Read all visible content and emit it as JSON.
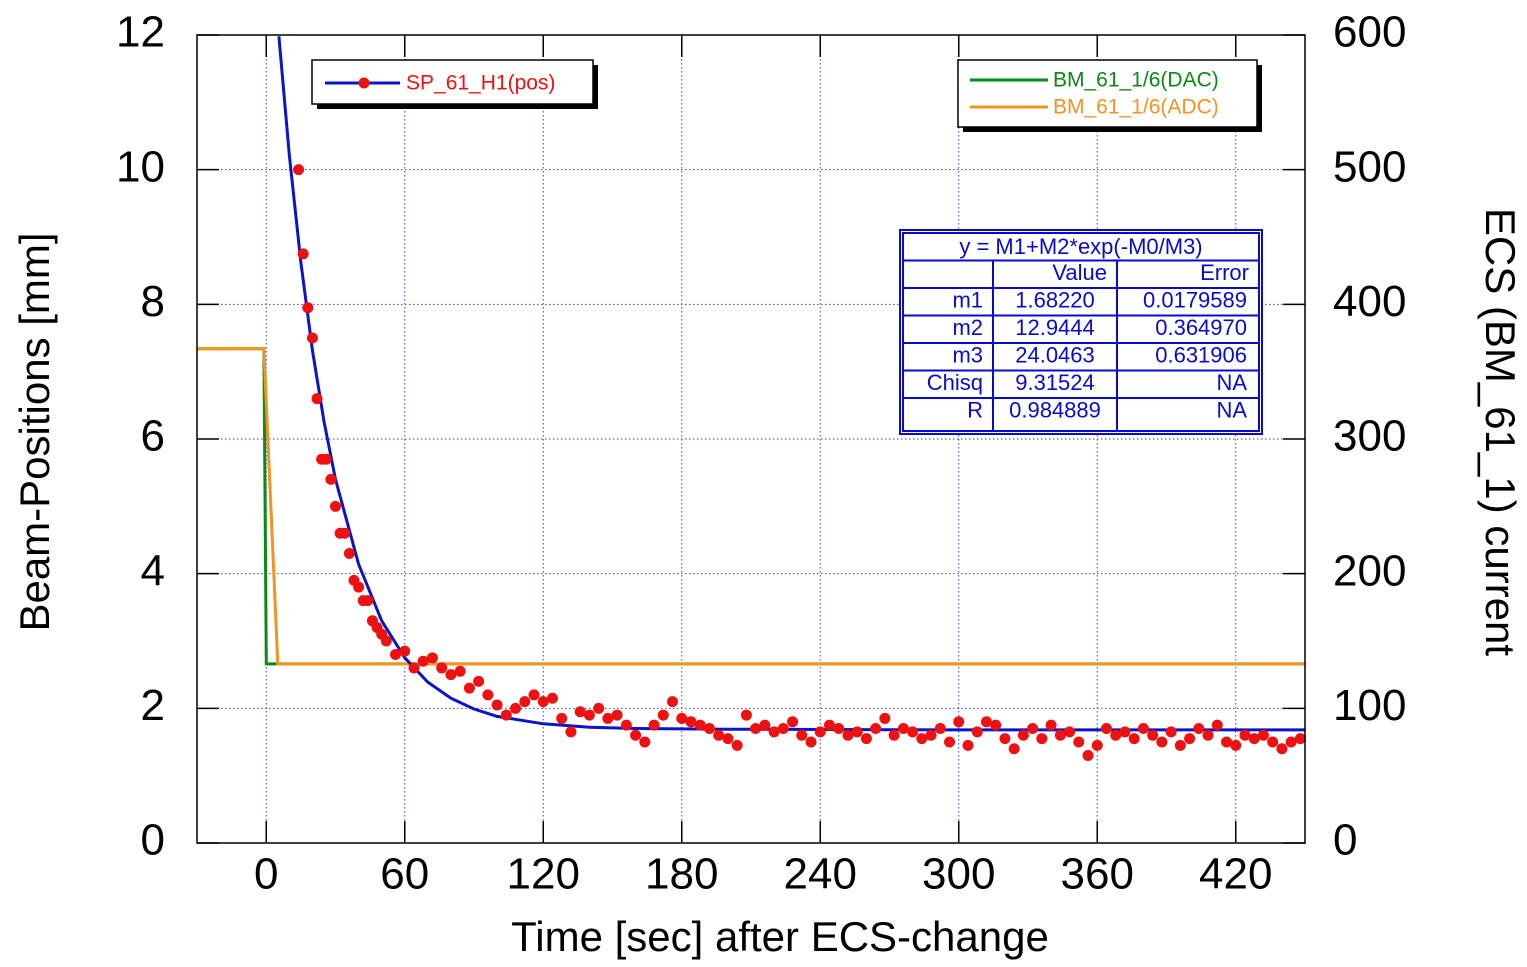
{
  "chart_data": {
    "type": "line",
    "x_label": "Time [sec] after ECS-change",
    "y_label": "Beam-Positions [mm]",
    "y2_label": "ECS (BM_61_1) current",
    "xlim": [
      -30,
      450
    ],
    "xticks": [
      0,
      60,
      120,
      180,
      240,
      300,
      360,
      420
    ],
    "ylim": [
      0,
      12
    ],
    "yticks": [
      0,
      2,
      4,
      6,
      8,
      10,
      12
    ],
    "y2lim": [
      0,
      600
    ],
    "y2ticks": [
      0,
      100,
      200,
      300,
      400,
      500,
      600
    ],
    "grid": true,
    "series": [
      {
        "name": "SP_61_H1(pos)",
        "type": "scatter",
        "color": "#ee1111",
        "x": [
          14,
          16,
          18,
          20,
          22,
          24,
          26,
          28,
          30,
          32,
          34,
          36,
          38,
          40,
          42,
          44,
          46,
          48,
          50,
          52,
          56,
          60,
          64,
          68,
          72,
          76,
          80,
          84,
          88,
          92,
          96,
          100,
          104,
          108,
          112,
          116,
          120,
          124,
          128,
          132,
          136,
          140,
          144,
          148,
          152,
          156,
          160,
          164,
          168,
          172,
          176,
          180,
          184,
          188,
          192,
          196,
          200,
          204,
          208,
          212,
          216,
          220,
          224,
          228,
          232,
          236,
          240,
          244,
          248,
          252,
          256,
          260,
          264,
          268,
          272,
          276,
          280,
          284,
          288,
          292,
          296,
          300,
          304,
          308,
          312,
          316,
          320,
          324,
          328,
          332,
          336,
          340,
          344,
          348,
          352,
          356,
          360,
          364,
          368,
          372,
          376,
          380,
          384,
          388,
          392,
          396,
          400,
          404,
          408,
          412,
          416,
          420,
          424,
          428,
          432,
          436,
          440,
          444,
          448
        ],
        "values": [
          10.0,
          8.75,
          7.95,
          7.5,
          6.6,
          5.7,
          5.7,
          5.4,
          5.0,
          4.6,
          4.6,
          4.3,
          3.9,
          3.8,
          3.6,
          3.6,
          3.3,
          3.2,
          3.1,
          3.0,
          2.8,
          2.85,
          2.6,
          2.7,
          2.75,
          2.6,
          2.5,
          2.55,
          2.3,
          2.4,
          2.2,
          2.05,
          1.9,
          2.0,
          2.1,
          2.2,
          2.1,
          2.15,
          1.85,
          1.65,
          1.95,
          1.9,
          2.0,
          1.85,
          1.9,
          1.75,
          1.6,
          1.5,
          1.75,
          1.9,
          2.1,
          1.85,
          1.8,
          1.75,
          1.7,
          1.6,
          1.55,
          1.45,
          1.9,
          1.7,
          1.75,
          1.65,
          1.7,
          1.8,
          1.6,
          1.5,
          1.65,
          1.75,
          1.7,
          1.6,
          1.65,
          1.55,
          1.7,
          1.85,
          1.6,
          1.7,
          1.65,
          1.55,
          1.6,
          1.7,
          1.5,
          1.8,
          1.45,
          1.65,
          1.8,
          1.75,
          1.55,
          1.4,
          1.6,
          1.7,
          1.55,
          1.75,
          1.6,
          1.65,
          1.5,
          1.3,
          1.45,
          1.7,
          1.6,
          1.65,
          1.55,
          1.7,
          1.6,
          1.5,
          1.65,
          1.45,
          1.55,
          1.7,
          1.6,
          1.75,
          1.5,
          1.45,
          1.6,
          1.55,
          1.6,
          1.5,
          1.4,
          1.5,
          1.55
        ]
      },
      {
        "type": "line",
        "color": "#0a14c8",
        "x": [
          5.5,
          10,
          15,
          20,
          25,
          30,
          40,
          50,
          60,
          70,
          80,
          90,
          100,
          120,
          140,
          160,
          200,
          300,
          450
        ],
        "values": [
          11.98,
          10.22,
          8.62,
          7.32,
          6.26,
          5.4,
          4.14,
          3.3,
          2.75,
          2.39,
          2.15,
          1.99,
          1.88,
          1.77,
          1.72,
          1.7,
          1.69,
          1.68,
          1.68
        ]
      },
      {
        "name": "BM_61_1/6(DAC)",
        "type": "line",
        "axis": "y2",
        "color": "#0a8a14",
        "x": [
          -30,
          -1,
          0,
          450
        ],
        "values": [
          367,
          367,
          133,
          133
        ]
      },
      {
        "name": "BM_61_1/6(ADC)",
        "type": "line",
        "axis": "y2",
        "color": "#f59320",
        "x": [
          -30,
          -1,
          5,
          450
        ],
        "values": [
          367,
          367,
          133,
          133
        ]
      }
    ],
    "fit_table": {
      "title": "y = M1+M2*exp(-M0/M3)",
      "header": [
        "Value",
        "Error"
      ],
      "rows": [
        [
          "m1",
          "1.68220",
          "0.0179589"
        ],
        [
          "m2",
          "12.9444",
          "0.364970"
        ],
        [
          "m3",
          "24.0463",
          "0.631906"
        ],
        [
          "Chisq",
          "9.31524",
          "NA"
        ],
        [
          "R",
          "0.984889",
          "NA"
        ]
      ]
    }
  }
}
